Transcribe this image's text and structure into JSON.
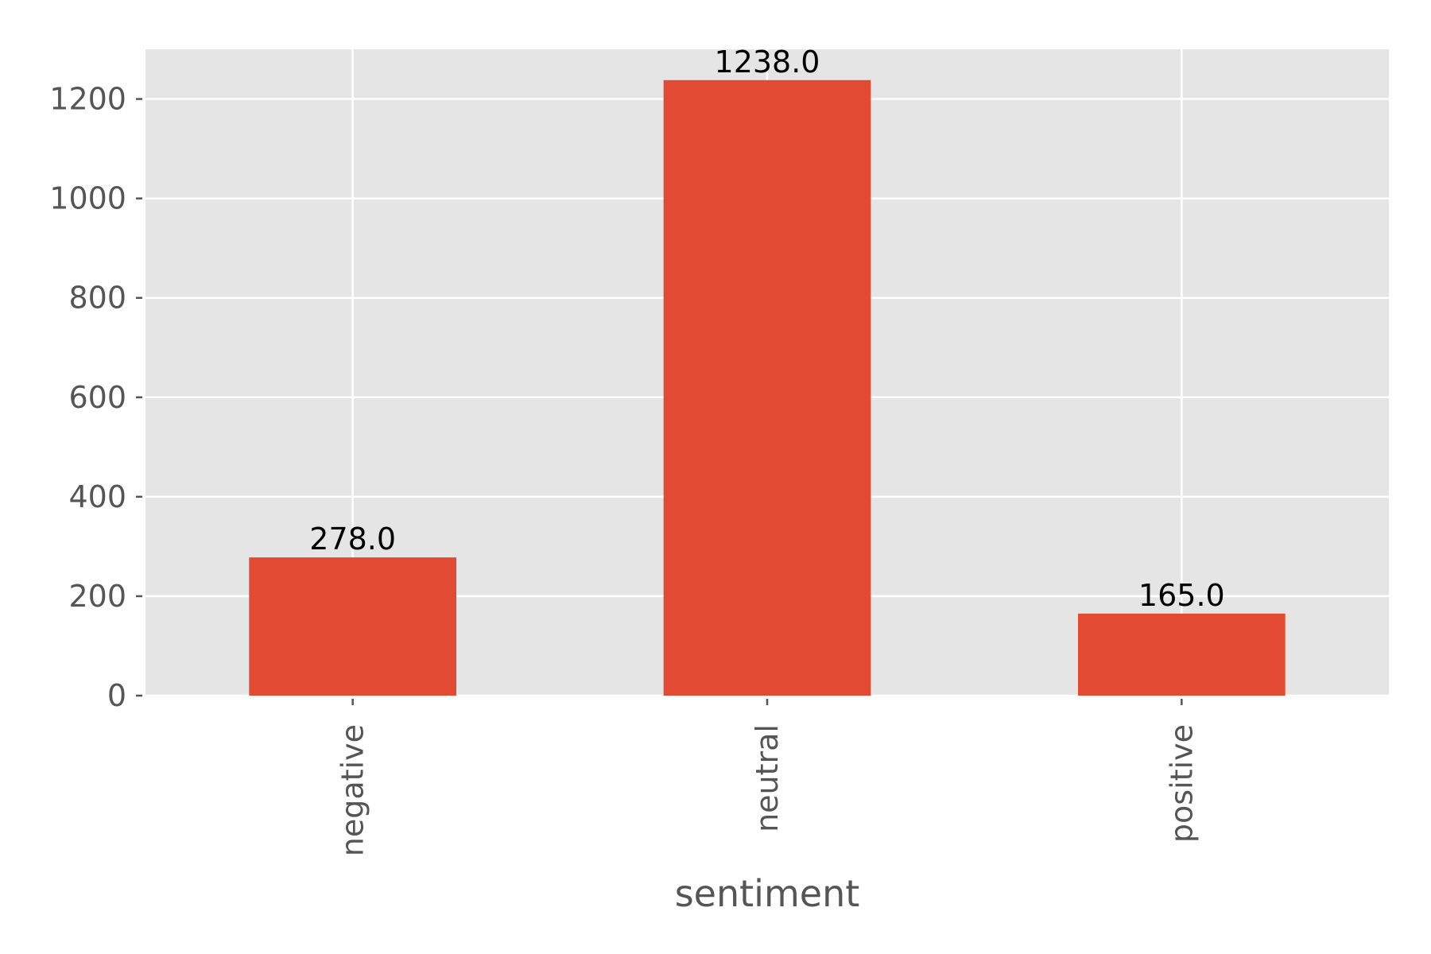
{
  "chart_data": {
    "type": "bar",
    "title": "",
    "xlabel": "sentiment",
    "ylabel": "",
    "categories": [
      "negative",
      "neutral",
      "positive"
    ],
    "values": [
      278.0,
      1238.0,
      165.0
    ],
    "value_labels": [
      "278.0",
      "1238.0",
      "165.0"
    ],
    "yticks": [
      0,
      200,
      400,
      600,
      800,
      1000,
      1200
    ],
    "ylim": [
      0,
      1300
    ],
    "grid": true,
    "style": "ggplot",
    "colors": {
      "bar": "#e24a33",
      "panel_background": "#e5e5e5",
      "grid": "#ffffff",
      "tick_text": "#555555",
      "annotation_text": "#000000"
    }
  }
}
